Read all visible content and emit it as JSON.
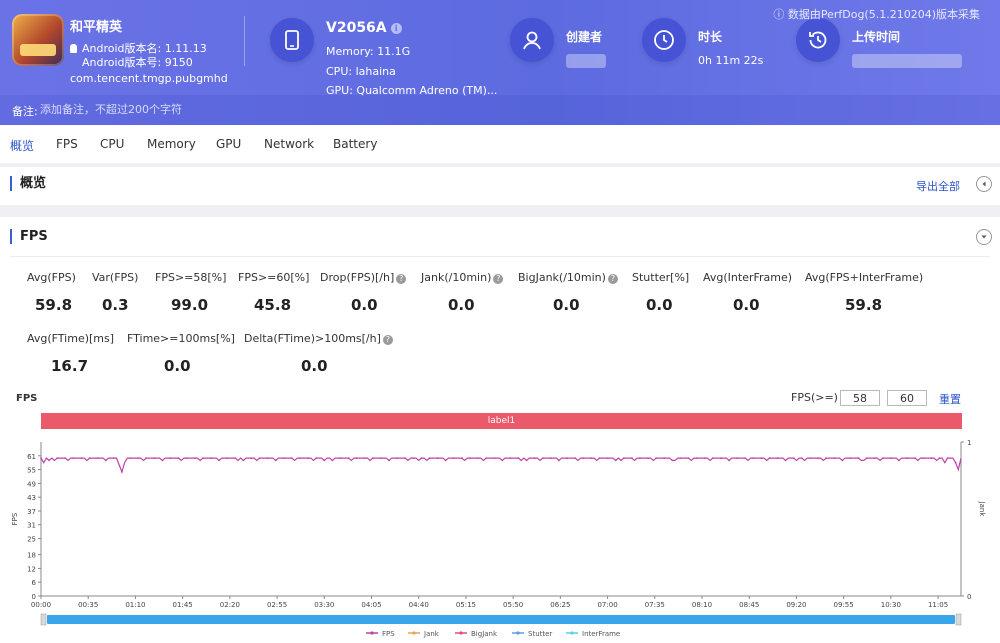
{
  "app": {
    "name": "和平精英",
    "android_version_name": "Android版本名: 1.11.13",
    "android_version_code": "Android版本号: 9150",
    "package": "com.tencent.tmgp.pubgmhd"
  },
  "device": {
    "model": "V2056A",
    "info_icon": "i",
    "memory": "Memory: 11.1G",
    "cpu": "CPU: lahaina",
    "gpu": "GPU: Qualcomm Adreno (TM)..."
  },
  "creator": {
    "label": "创建者"
  },
  "duration": {
    "label": "时长",
    "value": "0h 11m 22s"
  },
  "upload_time": {
    "label": "上传时间"
  },
  "perfdog_note": "ⓘ 数据由PerfDog(5.1.210204)版本采集",
  "note": {
    "label": "备注:",
    "placeholder": "添加备注，不超过200个字符"
  },
  "tabs": [
    "概览",
    "FPS",
    "CPU",
    "Memory",
    "GPU",
    "Network",
    "Battery"
  ],
  "overview": {
    "title": "概览",
    "export": "导出全部"
  },
  "fps_section": {
    "title": "FPS",
    "metrics_row1": [
      {
        "label": "Avg(FPS)",
        "value": "59.8"
      },
      {
        "label": "Var(FPS)",
        "value": "0.3"
      },
      {
        "label": "FPS>=58[%]",
        "value": "99.0"
      },
      {
        "label": "FPS>=60[%]",
        "value": "45.8"
      },
      {
        "label": "Drop(FPS)[/h]",
        "value": "0.0",
        "help": "?"
      },
      {
        "label": "Jank(/10min)",
        "value": "0.0",
        "help": "?"
      },
      {
        "label": "BigJank(/10min)",
        "value": "0.0",
        "help": "?"
      },
      {
        "label": "Stutter[%]",
        "value": "0.0"
      },
      {
        "label": "Avg(InterFrame)",
        "value": "0.0"
      },
      {
        "label": "Avg(FPS+InterFrame)",
        "value": "59.8"
      }
    ],
    "metrics_row2": [
      {
        "label": "Avg(FTime)[ms]",
        "value": "16.7"
      },
      {
        "label": "FTime>=100ms[%]",
        "value": "0.0"
      },
      {
        "label": "Delta(FTime)>100ms[/h]",
        "value": "0.0",
        "help": "?"
      }
    ],
    "threshold_label": "FPS(>=)",
    "threshold_low": "58",
    "threshold_high": "60",
    "reset": "重置"
  },
  "chart_data": {
    "type": "line",
    "title": "FPS",
    "band_label": "label1",
    "ylabel": "FPS",
    "ylabel_right": "Jank",
    "y_ticks": [
      0,
      6,
      12,
      18,
      25,
      31,
      37,
      43,
      49,
      55,
      61
    ],
    "ylim": [
      0,
      67
    ],
    "y2_ticks": [
      0,
      1
    ],
    "x_ticks": [
      "00:00",
      "00:35",
      "01:10",
      "01:45",
      "02:20",
      "02:55",
      "03:30",
      "04:05",
      "04:40",
      "05:15",
      "05:50",
      "06:25",
      "07:00",
      "07:35",
      "08:10",
      "08:45",
      "09:20",
      "09:55",
      "10:30",
      "11:05"
    ],
    "x_range_seconds": [
      0,
      682
    ],
    "series": [
      {
        "name": "FPS",
        "color": "#c040a8",
        "baseline": 60,
        "dips": [
          [
            2,
            58
          ],
          [
            10,
            59
          ],
          [
            47,
            58
          ],
          [
            58,
            57
          ],
          [
            60,
            54
          ],
          [
            62,
            58
          ],
          [
            90,
            59
          ],
          [
            150,
            59
          ],
          [
            210,
            59
          ],
          [
            280,
            59
          ],
          [
            360,
            59
          ],
          [
            430,
            59
          ],
          [
            470,
            59
          ],
          [
            510,
            59
          ],
          [
            560,
            59
          ],
          [
            610,
            59
          ],
          [
            655,
            59
          ],
          [
            670,
            58
          ],
          [
            678,
            58
          ],
          [
            680,
            55
          ]
        ]
      },
      {
        "name": "Jank",
        "color": "#f0a050",
        "values": []
      },
      {
        "name": "BigJank",
        "color": "#e0506a",
        "values": []
      },
      {
        "name": "Stutter",
        "color": "#5aa0e0",
        "values": []
      },
      {
        "name": "InterFrame",
        "color": "#5ad0e8",
        "values": []
      }
    ]
  }
}
